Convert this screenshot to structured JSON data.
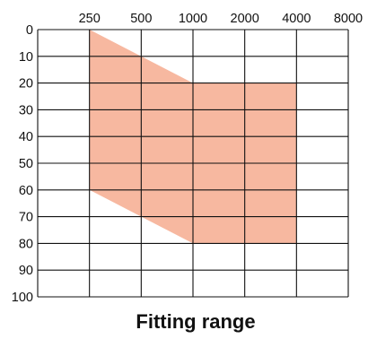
{
  "chart_data": {
    "type": "area",
    "title": "Fitting range",
    "xlabel": "",
    "ylabel": "",
    "x_ticks": [
      "250",
      "500",
      "1000",
      "2000",
      "4000",
      "8000"
    ],
    "y_ticks": [
      "0",
      "10",
      "20",
      "30",
      "40",
      "50",
      "60",
      "70",
      "80",
      "90",
      "100"
    ],
    "xlim": [
      125,
      8000
    ],
    "x_scale": "log",
    "ylim": [
      0,
      100
    ],
    "y_inverted": true,
    "grid": true,
    "fill_color": "#f7b8a0",
    "series": [
      {
        "upper": [
          {
            "x": 250,
            "y": 0
          },
          {
            "x": 1000,
            "y": 20
          },
          {
            "x": 4000,
            "y": 20
          }
        ],
        "lower": [
          {
            "x": 250,
            "y": 60
          },
          {
            "x": 1000,
            "y": 80
          },
          {
            "x": 4000,
            "y": 80
          }
        ]
      }
    ]
  }
}
